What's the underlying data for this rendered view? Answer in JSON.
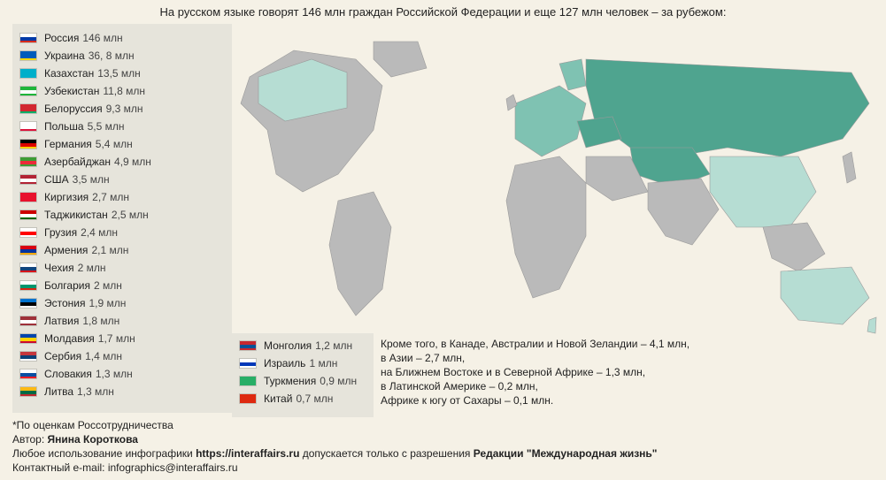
{
  "title": "На русском языке говорят 146 млн граждан Российской Федерации и еще 127 млн человек – за рубежом:",
  "unit": "млн",
  "countries_col1": [
    {
      "name": "Россия",
      "value": "146 млн",
      "flag": [
        "#ffffff",
        "#0039a6",
        "#d52b1e"
      ]
    },
    {
      "name": "Украина",
      "value": "36, 8 млн",
      "flag": [
        "#005bbb",
        "#005bbb",
        "#ffd500"
      ]
    },
    {
      "name": "Казахстан",
      "value": "13,5 млн",
      "flag": [
        "#00afca",
        "#00afca",
        "#00afca"
      ]
    },
    {
      "name": "Узбекистан",
      "value": "11,8 млн",
      "flag": [
        "#1eb53a",
        "#ffffff",
        "#1eb53a"
      ]
    },
    {
      "name": "Белоруссия",
      "value": "9,3 млн",
      "flag": [
        "#d22730",
        "#d22730",
        "#00af66"
      ]
    },
    {
      "name": "Польша",
      "value": "5,5 млн",
      "flag": [
        "#ffffff",
        "#ffffff",
        "#dc143c"
      ]
    },
    {
      "name": "Германия",
      "value": "5,4 млн",
      "flag": [
        "#000000",
        "#dd0000",
        "#ffce00"
      ]
    },
    {
      "name": "Азербайджан",
      "value": "4,9 млн",
      "flag": [
        "#3f9c35",
        "#ed2939",
        "#3f9c35"
      ]
    },
    {
      "name": "США",
      "value": "3,5 млн",
      "flag": [
        "#b22234",
        "#ffffff",
        "#b22234"
      ]
    },
    {
      "name": "Киргизия",
      "value": "2,7 млн",
      "flag": [
        "#e8112d",
        "#e8112d",
        "#e8112d"
      ]
    },
    {
      "name": "Таджикистан",
      "value": "2,5 млн",
      "flag": [
        "#cc0000",
        "#ffffff",
        "#006600"
      ]
    },
    {
      "name": "Грузия",
      "value": "2,4 млн",
      "flag": [
        "#ffffff",
        "#ff0000",
        "#ffffff"
      ]
    },
    {
      "name": "Армения",
      "value": "2,1 млн",
      "flag": [
        "#d90012",
        "#0033a0",
        "#f2a800"
      ]
    },
    {
      "name": "Чехия",
      "value": "2 млн",
      "flag": [
        "#ffffff",
        "#11457e",
        "#d7141a"
      ]
    },
    {
      "name": "Болгария",
      "value": "2 млн",
      "flag": [
        "#ffffff",
        "#00966e",
        "#d62612"
      ]
    },
    {
      "name": "Эстония",
      "value": "1,9 млн",
      "flag": [
        "#0072ce",
        "#000000",
        "#ffffff"
      ]
    },
    {
      "name": "Латвия",
      "value": "1,8 млн",
      "flag": [
        "#9e3039",
        "#ffffff",
        "#9e3039"
      ]
    },
    {
      "name": "Молдавия",
      "value": "1,7 млн",
      "flag": [
        "#0046ae",
        "#ffd200",
        "#cc092f"
      ]
    },
    {
      "name": "Сербия",
      "value": "1,4 млн",
      "flag": [
        "#c6363c",
        "#0c4076",
        "#ffffff"
      ]
    },
    {
      "name": "Словакия",
      "value": "1,3 млн",
      "flag": [
        "#ffffff",
        "#0b4ea2",
        "#ee1c25"
      ]
    },
    {
      "name": "Литва",
      "value": "1,3 млн",
      "flag": [
        "#fdb913",
        "#006a44",
        "#c1272d"
      ]
    }
  ],
  "countries_col2": [
    {
      "name": "Монголия",
      "value": "1,2 млн",
      "flag": [
        "#c4272f",
        "#015197",
        "#c4272f"
      ]
    },
    {
      "name": "Израиль",
      "value": "1 млн",
      "flag": [
        "#ffffff",
        "#0038b8",
        "#ffffff"
      ]
    },
    {
      "name": "Туркмения",
      "value": "0,9 млн",
      "flag": [
        "#28ae66",
        "#28ae66",
        "#28ae66"
      ]
    },
    {
      "name": "Китай",
      "value": "0,7 млн",
      "flag": [
        "#de2910",
        "#de2910",
        "#de2910"
      ]
    }
  ],
  "extra_lines": [
    "Кроме того, в Канаде, Австралии и Новой Зеландии – 4,1 млн,",
    "в Азии – 2,7 млн,",
    "на Ближнем Востоке и в Северной Африке – 1,3 млн,",
    "в Латинской Америке – 0,2 млн,",
    "Африке к югу от Сахары – 0,1 млн."
  ],
  "footer": {
    "source_note": "*По оценкам Россотрудничества",
    "author_label": "Автор: ",
    "author_name": "Янина Короткова",
    "use_prefix": "Любое использование инфографики ",
    "use_url": "https://interaffairs.ru",
    "use_mid": " допускается только с разрешения ",
    "use_owner": "Редакции \"Международная жизнь\"",
    "contact_label": "Контактный e-mail: ",
    "contact_email": "infographics@interaffairs.ru"
  },
  "map": {
    "ocean_color": "#f5f1e6",
    "neutral_country": "#bababa",
    "highlight_dark": "#4fa48f",
    "highlight_mid": "#7fc2b2",
    "highlight_light": "#b6ddd3",
    "border_color": "#9a9a9a"
  }
}
